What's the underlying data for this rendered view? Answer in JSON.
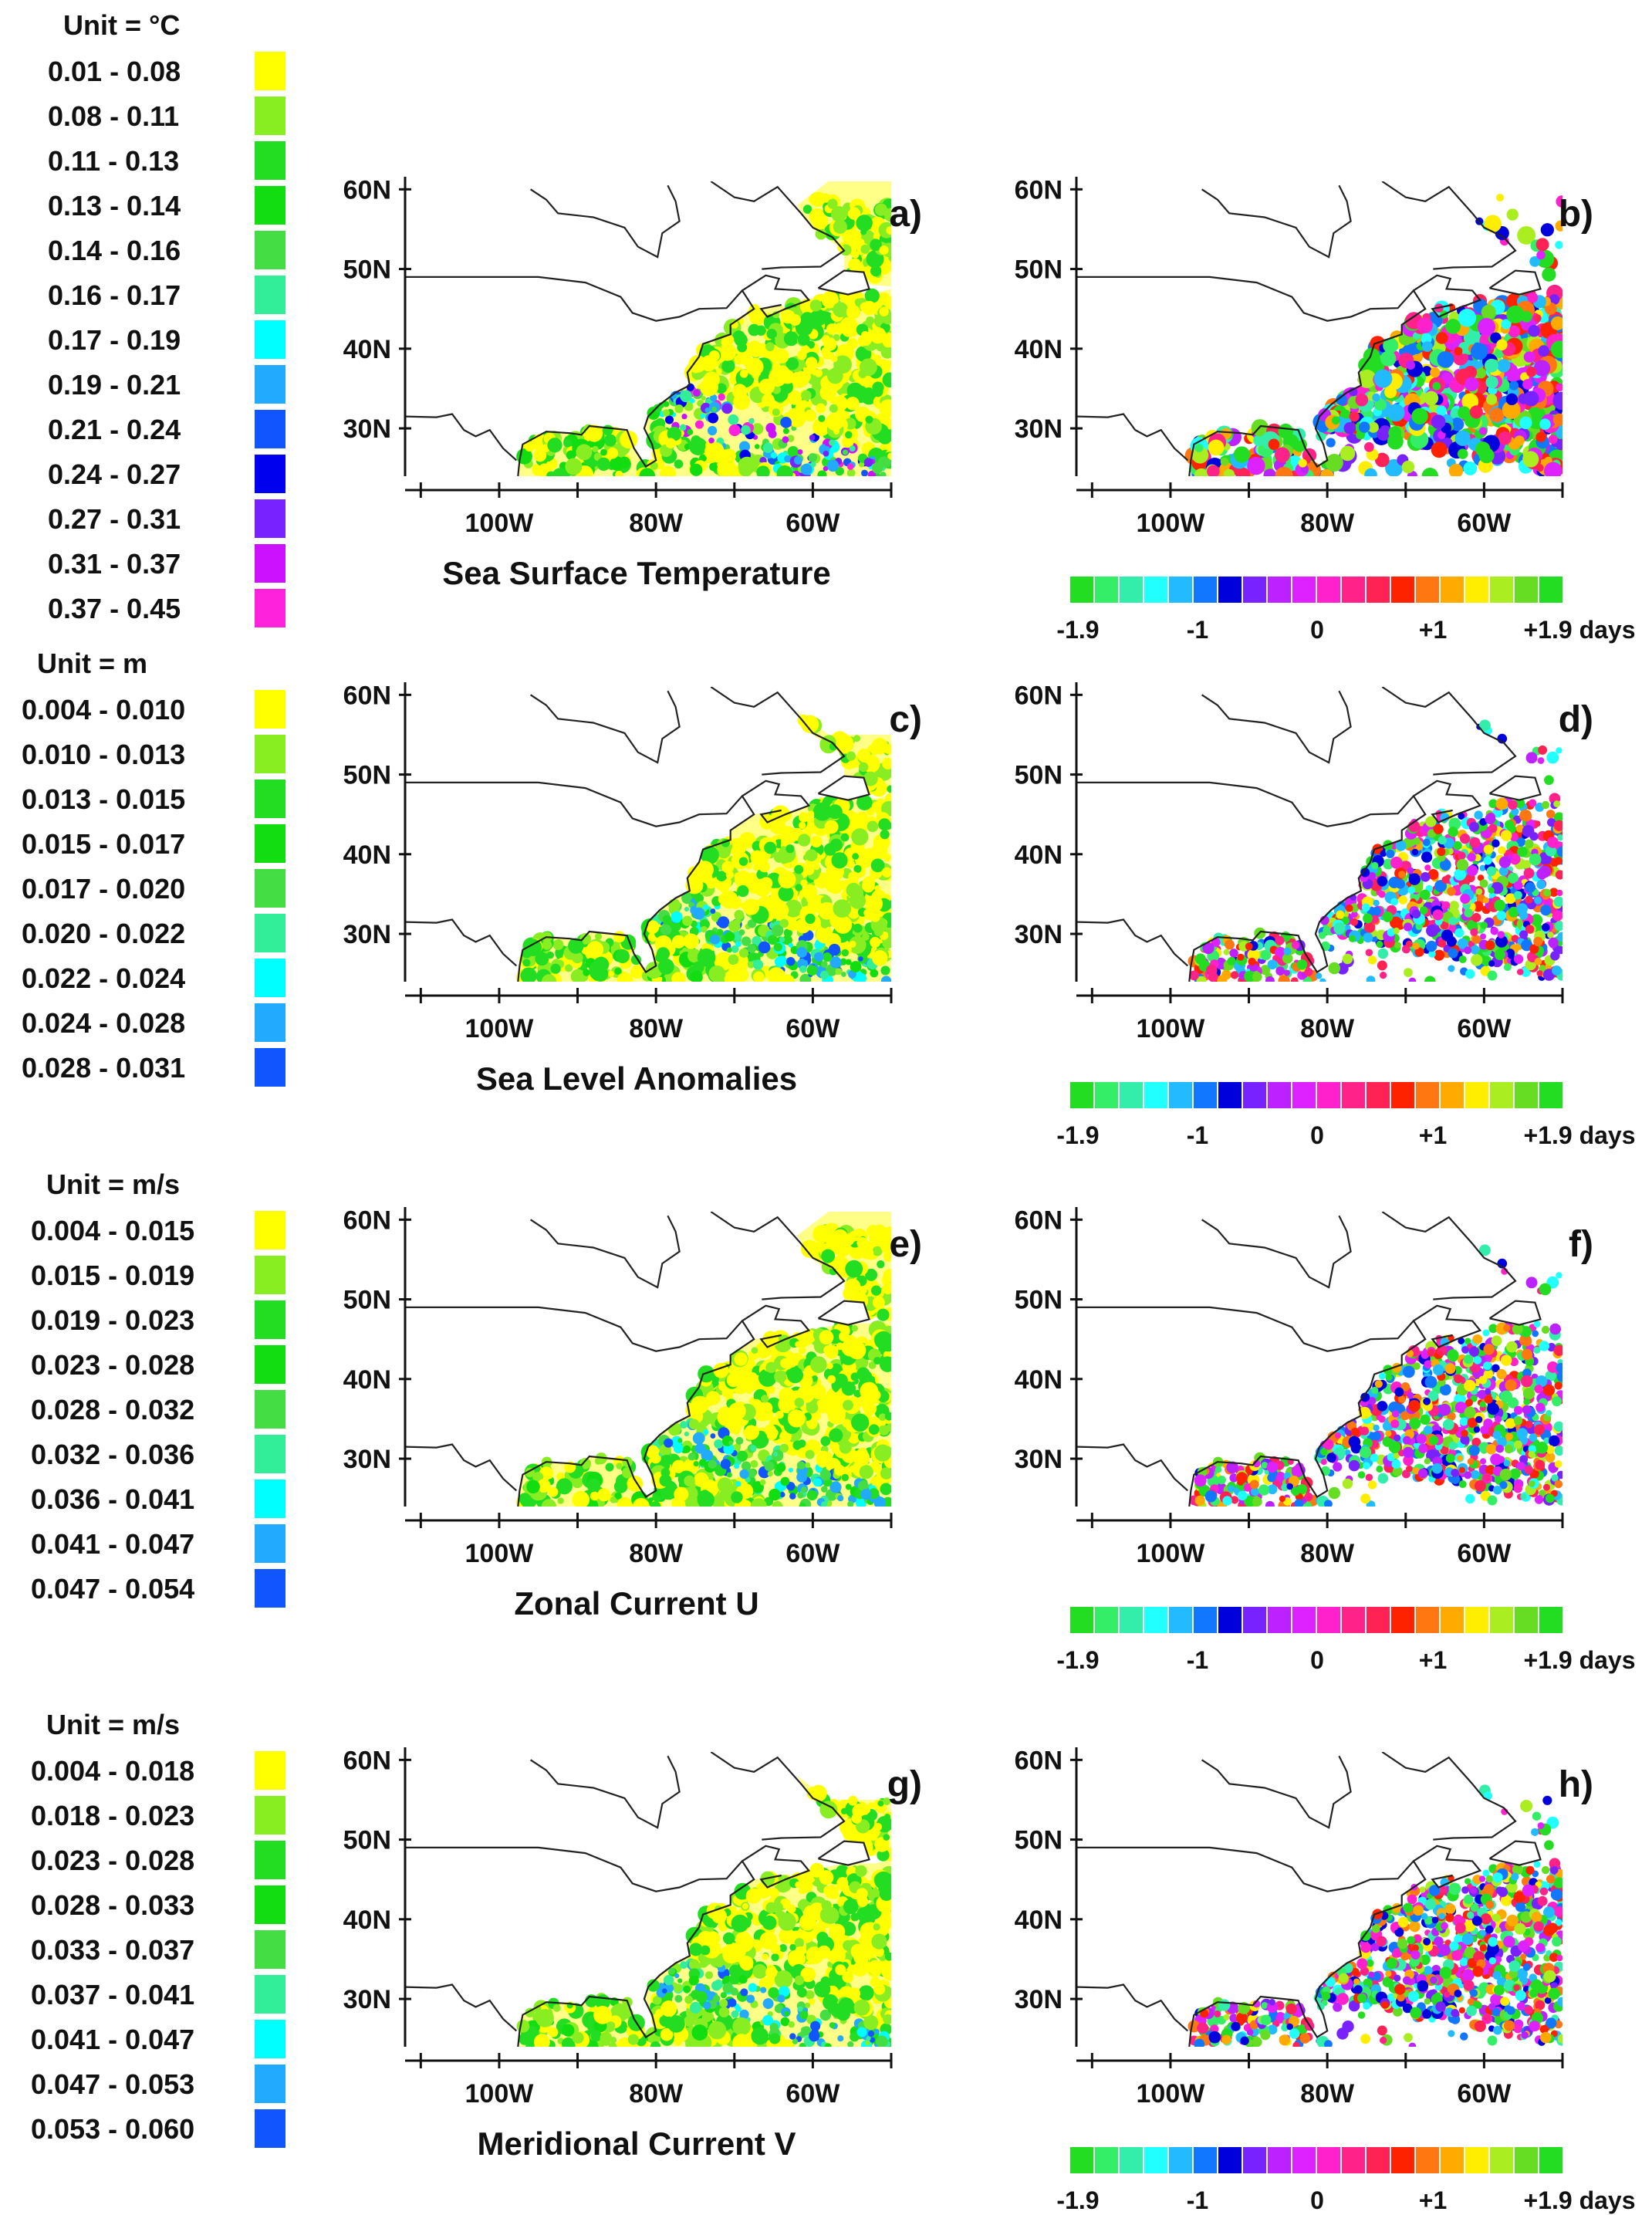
{
  "chart_data": [
    {
      "type": "heatmap",
      "panel_label": "a)",
      "title": "Sea Surface Temperature",
      "legend": {
        "unit": "Unit = °C",
        "ranges": [
          "0.01  - 0.08",
          "0.08  - 0.11",
          "0.11  - 0.13",
          "0.13  - 0.14",
          "0.14  - 0.16",
          "0.16  - 0.17",
          "0.17  - 0.19",
          "0.19  - 0.21",
          "0.21  - 0.24",
          "0.24  - 0.27",
          "0.27  - 0.31",
          "0.31  - 0.37",
          "0.37  - 0.45"
        ],
        "colors": [
          "#ffff00",
          "#88ee22",
          "#22dd22",
          "#11dd11",
          "#44dd44",
          "#33ee99",
          "#00ffff",
          "#22aaff",
          "#1155ff",
          "#0000ee",
          "#7722ff",
          "#cc11ff",
          "#ff22dd"
        ]
      },
      "xticks": [
        "100W",
        "80W",
        "60W"
      ],
      "yticks": [
        "30N",
        "40N",
        "50N",
        "60N"
      ],
      "xlim": [
        -112,
        -50
      ],
      "ylim": [
        24,
        61
      ]
    },
    {
      "type": "heatmap",
      "panel_label": "b)",
      "title": "",
      "colorbar": {
        "labels": [
          "-1.9",
          "-1",
          "0",
          "+1",
          "+1.9 days"
        ],
        "colors": [
          "#22dd22",
          "#33ee66",
          "#33eeaa",
          "#22ffff",
          "#22bbff",
          "#1177ff",
          "#0000dd",
          "#7722ff",
          "#bb22ff",
          "#dd22ff",
          "#ff22cc",
          "#ff2288",
          "#ff2255",
          "#ff2200",
          "#ff7711",
          "#ffaa00",
          "#ffee00",
          "#aaee22",
          "#66dd22",
          "#22dd22"
        ]
      },
      "xticks": [
        "100W",
        "80W",
        "60W"
      ],
      "yticks": [
        "30N",
        "40N",
        "50N",
        "60N"
      ],
      "xlim": [
        -112,
        -50
      ],
      "ylim": [
        24,
        61
      ]
    },
    {
      "type": "heatmap",
      "panel_label": "c)",
      "title": "Sea Level Anomalies",
      "legend": {
        "unit": "Unit = m",
        "ranges": [
          "0.004  - 0.010",
          "0.010  - 0.013",
          "0.013  - 0.015",
          "0.015  - 0.017",
          "0.017  - 0.020",
          "0.020  - 0.022",
          "0.022  - 0.024",
          "0.024  - 0.028",
          "0.028  - 0.031"
        ],
        "colors": [
          "#ffff00",
          "#88ee22",
          "#22dd22",
          "#11dd11",
          "#44dd44",
          "#33ee99",
          "#00ffff",
          "#22aaff",
          "#1155ff"
        ]
      },
      "xticks": [
        "100W",
        "80W",
        "60W"
      ],
      "yticks": [
        "30N",
        "40N",
        "50N",
        "60N"
      ],
      "xlim": [
        -112,
        -50
      ],
      "ylim": [
        24,
        61
      ]
    },
    {
      "type": "heatmap",
      "panel_label": "d)",
      "title": "",
      "colorbar": {
        "labels": [
          "-1.9",
          "-1",
          "0",
          "+1",
          "+1.9 days"
        ],
        "colors": [
          "#22dd22",
          "#33ee66",
          "#33eeaa",
          "#22ffff",
          "#22bbff",
          "#1177ff",
          "#0000dd",
          "#7722ff",
          "#bb22ff",
          "#dd22ff",
          "#ff22cc",
          "#ff2288",
          "#ff2255",
          "#ff2200",
          "#ff7711",
          "#ffaa00",
          "#ffee00",
          "#aaee22",
          "#66dd22",
          "#22dd22"
        ]
      },
      "xticks": [
        "100W",
        "80W",
        "60W"
      ],
      "yticks": [
        "30N",
        "40N",
        "50N",
        "60N"
      ],
      "xlim": [
        -112,
        -50
      ],
      "ylim": [
        24,
        61
      ]
    },
    {
      "type": "heatmap",
      "panel_label": "e)",
      "title": "Zonal Current U",
      "legend": {
        "unit": "Unit = m/s",
        "ranges": [
          "0.004  - 0.015",
          "0.015  - 0.019",
          "0.019  - 0.023",
          "0.023  - 0.028",
          "0.028  - 0.032",
          "0.032  - 0.036",
          "0.036  - 0.041",
          "0.041  - 0.047",
          "0.047  - 0.054"
        ],
        "colors": [
          "#ffff00",
          "#88ee22",
          "#22dd22",
          "#11dd11",
          "#44dd44",
          "#33ee99",
          "#00ffff",
          "#22aaff",
          "#1155ff"
        ]
      },
      "xticks": [
        "100W",
        "80W",
        "60W"
      ],
      "yticks": [
        "30N",
        "40N",
        "50N",
        "60N"
      ],
      "xlim": [
        -112,
        -50
      ],
      "ylim": [
        24,
        61
      ]
    },
    {
      "type": "heatmap",
      "panel_label": "f)",
      "title": "",
      "colorbar": {
        "labels": [
          "-1.9",
          "-1",
          "0",
          "+1",
          "+1.9 days"
        ],
        "colors": [
          "#22dd22",
          "#33ee66",
          "#33eeaa",
          "#22ffff",
          "#22bbff",
          "#1177ff",
          "#0000dd",
          "#7722ff",
          "#bb22ff",
          "#dd22ff",
          "#ff22cc",
          "#ff2288",
          "#ff2255",
          "#ff2200",
          "#ff7711",
          "#ffaa00",
          "#ffee00",
          "#aaee22",
          "#66dd22",
          "#22dd22"
        ]
      },
      "xticks": [
        "100W",
        "80W",
        "60W"
      ],
      "yticks": [
        "30N",
        "40N",
        "50N",
        "60N"
      ],
      "xlim": [
        -112,
        -50
      ],
      "ylim": [
        24,
        61
      ]
    },
    {
      "type": "heatmap",
      "panel_label": "g)",
      "title": "Meridional Current V",
      "legend": {
        "unit": "Unit = m/s",
        "ranges": [
          "0.004  - 0.018",
          "0.018  - 0.023",
          "0.023  - 0.028",
          "0.028  - 0.033",
          "0.033  - 0.037",
          "0.037  - 0.041",
          "0.041  - 0.047",
          "0.047  - 0.053",
          "0.053  - 0.060"
        ],
        "colors": [
          "#ffff00",
          "#88ee22",
          "#22dd22",
          "#11dd11",
          "#44dd44",
          "#33ee99",
          "#00ffff",
          "#22aaff",
          "#1155ff"
        ]
      },
      "xticks": [
        "100W",
        "80W",
        "60W"
      ],
      "yticks": [
        "30N",
        "40N",
        "50N",
        "60N"
      ],
      "xlim": [
        -112,
        -50
      ],
      "ylim": [
        24,
        61
      ]
    },
    {
      "type": "heatmap",
      "panel_label": "h)",
      "title": "",
      "colorbar": {
        "labels": [
          "-1.9",
          "-1",
          "0",
          "+1",
          "+1.9 days"
        ],
        "colors": [
          "#22dd22",
          "#33ee66",
          "#33eeaa",
          "#22ffff",
          "#22bbff",
          "#1177ff",
          "#0000dd",
          "#7722ff",
          "#bb22ff",
          "#dd22ff",
          "#ff22cc",
          "#ff2288",
          "#ff2255",
          "#ff2200",
          "#ff7711",
          "#ffaa00",
          "#ffee00",
          "#aaee22",
          "#66dd22",
          "#22dd22"
        ]
      },
      "xticks": [
        "100W",
        "80W",
        "60W"
      ],
      "yticks": [
        "30N",
        "40N",
        "50N",
        "60N"
      ],
      "xlim": [
        -112,
        -50
      ],
      "ylim": [
        24,
        61
      ]
    }
  ],
  "colors": {
    "map_fill_pale": "#ffff88",
    "coastline": "#222222"
  }
}
